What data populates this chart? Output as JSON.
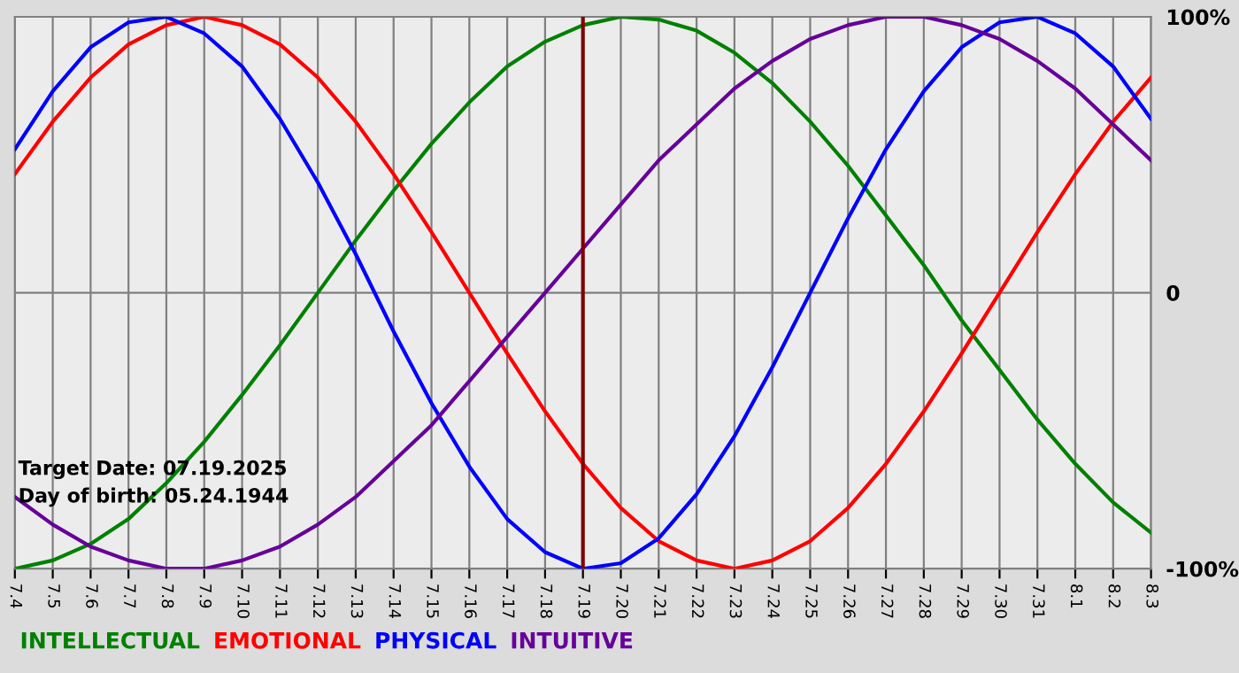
{
  "chart_data": {
    "type": "line",
    "annotations": [
      "Target Date: 07.19.2025",
      "Day of birth: 05.24.1944"
    ],
    "x": [
      "2025-07-04",
      "2025-07-05",
      "2025-07-06",
      "2025-07-07",
      "2025-07-08",
      "2025-07-09",
      "2025-07-10",
      "2025-07-11",
      "2025-07-12",
      "2025-07-13",
      "2025-07-14",
      "2025-07-15",
      "2025-07-16",
      "2025-07-17",
      "2025-07-18",
      "2025-07-19",
      "2025-07-20",
      "2025-07-21",
      "2025-07-22",
      "2025-07-23",
      "2025-07-24",
      "2025-07-25",
      "2025-07-26",
      "2025-07-27",
      "2025-07-28",
      "2025-07-29",
      "2025-07-30",
      "2025-07-31",
      "2025-08-01",
      "2025-08-02",
      "2025-08-03"
    ],
    "series": [
      {
        "name": "INTELLECTUAL",
        "color": "#008000",
        "values": [
          -100,
          -97,
          -91,
          -82,
          -69,
          -54,
          -37,
          -19,
          0,
          19,
          37,
          54,
          69,
          82,
          91,
          97,
          100,
          99,
          95,
          87,
          76,
          62,
          46,
          28,
          10,
          -10,
          -28,
          -46,
          -62,
          -76,
          -87
        ]
      },
      {
        "name": "EMOTIONAL",
        "color": "#ff0000",
        "values": [
          43,
          62,
          78,
          90,
          97,
          100,
          97,
          90,
          78,
          62,
          43,
          22,
          0,
          -22,
          -43,
          -62,
          -78,
          -90,
          -97,
          -100,
          -97,
          -90,
          -78,
          -62,
          -43,
          -22,
          0,
          22,
          43,
          62,
          78
        ]
      },
      {
        "name": "PHYSICAL",
        "color": "#0000ff",
        "values": [
          52,
          73,
          89,
          98,
          100,
          94,
          82,
          63,
          40,
          14,
          -14,
          -40,
          -63,
          -82,
          -94,
          -100,
          -98,
          -89,
          -73,
          -52,
          -27,
          0,
          27,
          52,
          73,
          89,
          98,
          100,
          94,
          82,
          63
        ]
      },
      {
        "name": "INTUITIVE",
        "color": "#660099",
        "values": [
          -74,
          -84,
          -92,
          -97,
          -100,
          -100,
          -97,
          -92,
          -84,
          -74,
          -61,
          -48,
          -32,
          -16,
          0,
          16,
          32,
          48,
          61,
          74,
          84,
          92,
          97,
          100,
          100,
          97,
          92,
          84,
          74,
          61,
          48
        ]
      }
    ],
    "xlim": [
      "2025-07-04",
      "2025-08-03"
    ],
    "xticks": [
      {
        "value": "2025-07-04",
        "label": "7.4"
      },
      {
        "value": "2025-07-05",
        "label": "7.5"
      },
      {
        "value": "2025-07-06",
        "label": "7.6"
      },
      {
        "value": "2025-07-07",
        "label": "7.7"
      },
      {
        "value": "2025-07-08",
        "label": "7.8"
      },
      {
        "value": "2025-07-09",
        "label": "7.9"
      },
      {
        "value": "2025-07-10",
        "label": "7.10"
      },
      {
        "value": "2025-07-11",
        "label": "7.11"
      },
      {
        "value": "2025-07-12",
        "label": "7.12"
      },
      {
        "value": "2025-07-13",
        "label": "7.13"
      },
      {
        "value": "2025-07-14",
        "label": "7.14"
      },
      {
        "value": "2025-07-15",
        "label": "7.15"
      },
      {
        "value": "2025-07-16",
        "label": "7.16"
      },
      {
        "value": "2025-07-17",
        "label": "7.17"
      },
      {
        "value": "2025-07-18",
        "label": "7.18"
      },
      {
        "value": "2025-07-19",
        "label": "7.19"
      },
      {
        "value": "2025-07-20",
        "label": "7.20"
      },
      {
        "value": "2025-07-21",
        "label": "7.21"
      },
      {
        "value": "2025-07-22",
        "label": "7.22"
      },
      {
        "value": "2025-07-23",
        "label": "7.23"
      },
      {
        "value": "2025-07-24",
        "label": "7.24"
      },
      {
        "value": "2025-07-25",
        "label": "7.25"
      },
      {
        "value": "2025-07-26",
        "label": "7.26"
      },
      {
        "value": "2025-07-27",
        "label": "7.27"
      },
      {
        "value": "2025-07-28",
        "label": "7.28"
      },
      {
        "value": "2025-07-29",
        "label": "7.29"
      },
      {
        "value": "2025-07-30",
        "label": "7.30"
      },
      {
        "value": "2025-07-31",
        "label": "7.31"
      },
      {
        "value": "2025-08-01",
        "label": "8.1"
      },
      {
        "value": "2025-08-02",
        "label": "8.2"
      },
      {
        "value": "2025-08-03",
        "label": "8.3"
      }
    ],
    "ylim": [
      -100,
      100
    ],
    "yticks": [
      {
        "value": 100,
        "label": "100%"
      },
      0,
      {
        "value": -100,
        "label": "-100%"
      }
    ],
    "ref_lines": [
      {
        "axis": "x",
        "value": "2025-07-19",
        "color": "#800000"
      }
    ],
    "grid": true,
    "legend": "bottom left",
    "marker": "none",
    "line_style": "solid"
  }
}
